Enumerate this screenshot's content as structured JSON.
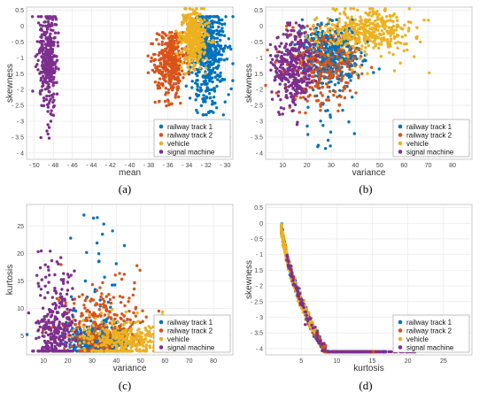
{
  "colors": {
    "railway track 1": "#0072BD",
    "railway track 2": "#D95319",
    "vehicle": "#EDB120",
    "signal machine": "#7E2F8E"
  },
  "chart_data": [
    {
      "type": "scatter",
      "caption": "(a)",
      "xlabel": "mean",
      "ylabel": "skewness",
      "xlim": [
        -50.8,
        -29.2
      ],
      "ylim": [
        -4.2,
        0.6
      ],
      "x_reversed": true,
      "x_tick_labels": [
        "- 50",
        "- 48",
        "- 46",
        "- 44",
        "- 42",
        "- 40",
        "- 38",
        "- 36",
        "- 34",
        "- 32",
        "- 30"
      ],
      "y_tick_labels": [
        "0.5",
        "0",
        "- 0.5",
        "- 1",
        "- 1.5",
        "- 2",
        "- 2.5",
        "- 3",
        "- 3.5",
        "- 4"
      ],
      "grid": true,
      "legend": "bottom-right",
      "series": [
        {
          "name": "railway track 1",
          "cluster": {
            "x_center": -31.8,
            "x_spread": 0.9,
            "y_center": -0.9,
            "y_spread": 0.75,
            "y_range": [
              -2.8,
              0.3
            ],
            "count": 460
          }
        },
        {
          "name": "railway track 2",
          "cluster": {
            "x_center": -35.8,
            "x_spread": 0.8,
            "y_center": -1.1,
            "y_spread": 0.45,
            "y_range": [
              -2.7,
              -0.2
            ],
            "count": 380
          }
        },
        {
          "name": "vehicle",
          "cluster": {
            "x_center": -33.3,
            "x_spread": 0.7,
            "y_center": -0.35,
            "y_spread": 0.4,
            "y_range": [
              -1.5,
              0.55
            ],
            "count": 380
          }
        },
        {
          "name": "signal machine",
          "cluster": {
            "x_center": -48.5,
            "x_spread": 0.5,
            "y_center": -1.0,
            "y_spread": 0.7,
            "y_range": [
              -3.6,
              0.3
            ],
            "count": 340
          }
        }
      ]
    },
    {
      "type": "scatter",
      "caption": "(b)",
      "xlabel": "variance",
      "ylabel": "skewness",
      "xlim": [
        3,
        88
      ],
      "ylim": [
        -4.2,
        0.6
      ],
      "x_reversed": false,
      "x_tick_labels": [
        "10",
        "20",
        "30",
        "40",
        "50",
        "60",
        "70",
        "80"
      ],
      "y_tick_labels": [
        "0.5",
        "0",
        "- 0.5",
        "- 1",
        "- 1.5",
        "- 2",
        "- 2.5",
        "- 3",
        "- 3.5",
        "- 4"
      ],
      "grid": true,
      "legend": "bottom-right",
      "series": [
        {
          "name": "railway track 1",
          "cluster": {
            "x_center": 30,
            "x_spread": 6,
            "y_center": -0.9,
            "y_spread": 0.45,
            "y_range": [
              -3.9,
              0.2
            ],
            "count": 480
          }
        },
        {
          "name": "railway track 2",
          "cluster": {
            "x_center": 26,
            "x_spread": 8,
            "y_center": -1.3,
            "y_spread": 0.6,
            "y_range": [
              -3.2,
              0.0
            ],
            "count": 280
          }
        },
        {
          "name": "vehicle",
          "cluster": {
            "x_center": 45,
            "x_spread": 9,
            "y_center": -0.2,
            "y_spread": 0.3,
            "y_range": [
              -1.5,
              0.55
            ],
            "count": 380
          }
        },
        {
          "name": "signal machine",
          "cluster": {
            "x_center": 14,
            "x_spread": 4,
            "y_center": -1.3,
            "y_spread": 0.6,
            "y_range": [
              -3.6,
              0.1
            ],
            "count": 320
          }
        }
      ]
    },
    {
      "type": "scatter",
      "caption": "(c)",
      "xlabel": "variance",
      "ylabel": "kurtosis",
      "xlim": [
        3,
        88
      ],
      "ylim": [
        1.5,
        29
      ],
      "x_reversed": false,
      "x_tick_labels": [
        "10",
        "20",
        "30",
        "40",
        "50",
        "60",
        "70",
        "80"
      ],
      "y_tick_labels": [
        "5",
        "10",
        "15",
        "20",
        "25"
      ],
      "grid": true,
      "legend": "bottom-right",
      "series": [
        {
          "name": "railway track 1",
          "cluster": {
            "x_center": 32,
            "x_spread": 6,
            "y_center": 4.0,
            "y_spread": 1.6,
            "y_range": [
              2.2,
              28.2
            ],
            "count": 480
          }
        },
        {
          "name": "railway track 2",
          "cluster": {
            "x_center": 35,
            "x_spread": 9,
            "y_center": 6.0,
            "y_spread": 3.5,
            "y_range": [
              2.2,
              18
            ],
            "count": 300
          }
        },
        {
          "name": "vehicle",
          "cluster": {
            "x_center": 45,
            "x_spread": 10,
            "y_center": 3.8,
            "y_spread": 1.5,
            "y_range": [
              2.2,
              10
            ],
            "count": 380
          }
        },
        {
          "name": "signal machine",
          "cluster": {
            "x_center": 15,
            "x_spread": 4,
            "y_center": 5.5,
            "y_spread": 4.0,
            "y_range": [
              2.2,
              21
            ],
            "count": 300
          }
        }
      ]
    },
    {
      "type": "scatter",
      "caption": "(d)",
      "xlabel": "kurtosis",
      "ylabel": "skewness",
      "xlim": [
        0,
        29
      ],
      "ylim": [
        -4.2,
        0.6
      ],
      "x_reversed": false,
      "x_tick_labels": [
        "5",
        "10",
        "15",
        "20",
        "25"
      ],
      "y_tick_labels": [
        "0.5",
        "0",
        "- 0.5",
        "- 1",
        "- 1.5",
        "- 2",
        "- 2.5",
        "- 3",
        "- 3.5",
        "- 4"
      ],
      "grid": true,
      "legend": "bottom-right",
      "series": [
        {
          "name": "railway track 1",
          "curve": {
            "x_range": [
              2.2,
              17
            ],
            "count": 420
          }
        },
        {
          "name": "railway track 2",
          "curve": {
            "x_range": [
              2.5,
              16
            ],
            "count": 300
          }
        },
        {
          "name": "vehicle",
          "curve": {
            "x_range": [
              2.2,
              7
            ],
            "count": 300
          }
        },
        {
          "name": "signal machine",
          "curve": {
            "x_range": [
              3,
              21
            ],
            "count": 160
          }
        }
      ]
    }
  ]
}
